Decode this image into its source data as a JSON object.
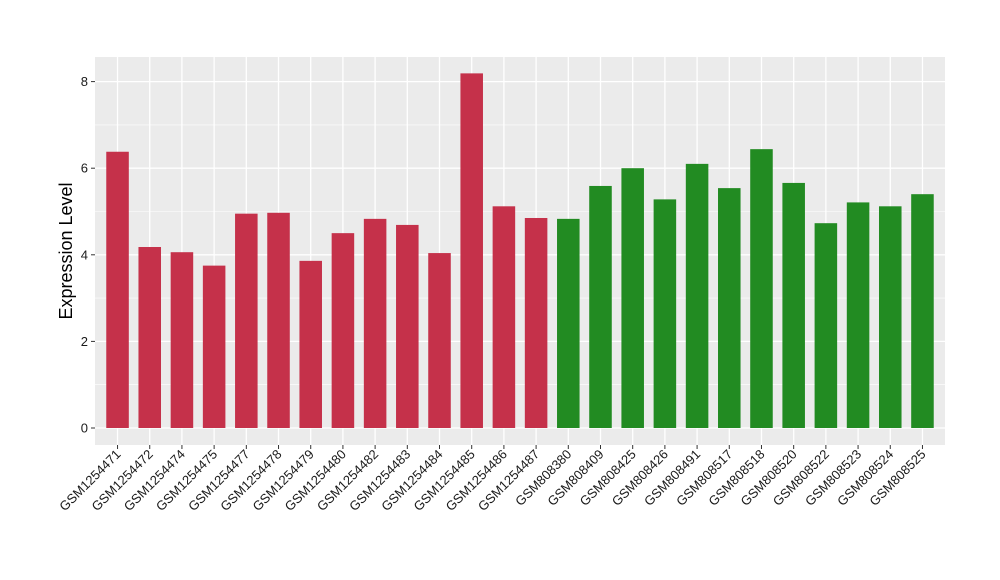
{
  "chart_data": {
    "type": "bar",
    "title": "",
    "xlabel": "",
    "ylabel": "Expression Level",
    "ylim": [
      0,
      8.5
    ],
    "yticks": [
      0,
      2,
      4,
      6,
      8
    ],
    "grid": true,
    "categories": [
      "GSM1254471",
      "GSM1254472",
      "GSM1254474",
      "GSM1254475",
      "GSM1254477",
      "GSM1254478",
      "GSM1254479",
      "GSM1254480",
      "GSM1254482",
      "GSM1254483",
      "GSM1254484",
      "GSM1254485",
      "GSM1254486",
      "GSM1254487",
      "GSM808380",
      "GSM808409",
      "GSM808425",
      "GSM808426",
      "GSM808491",
      "GSM808517",
      "GSM808518",
      "GSM808520",
      "GSM808522",
      "GSM808523",
      "GSM808524",
      "GSM808525"
    ],
    "values": [
      6.38,
      4.18,
      4.06,
      3.75,
      4.95,
      4.97,
      3.86,
      4.5,
      4.83,
      4.69,
      4.04,
      8.19,
      5.12,
      4.85,
      4.83,
      5.59,
      6.0,
      5.28,
      6.1,
      5.54,
      6.44,
      5.66,
      4.73,
      5.21,
      5.12,
      5.4
    ],
    "colors": [
      "#C5314A",
      "#C5314A",
      "#C5314A",
      "#C5314A",
      "#C5314A",
      "#C5314A",
      "#C5314A",
      "#C5314A",
      "#C5314A",
      "#C5314A",
      "#C5314A",
      "#C5314A",
      "#C5314A",
      "#C5314A",
      "#228B22",
      "#228B22",
      "#228B22",
      "#228B22",
      "#228B22",
      "#228B22",
      "#228B22",
      "#228B22",
      "#228B22",
      "#228B22",
      "#228B22",
      "#228B22"
    ],
    "panel_background": "#EBEBEB",
    "grid_color": "#FFFFFF"
  }
}
